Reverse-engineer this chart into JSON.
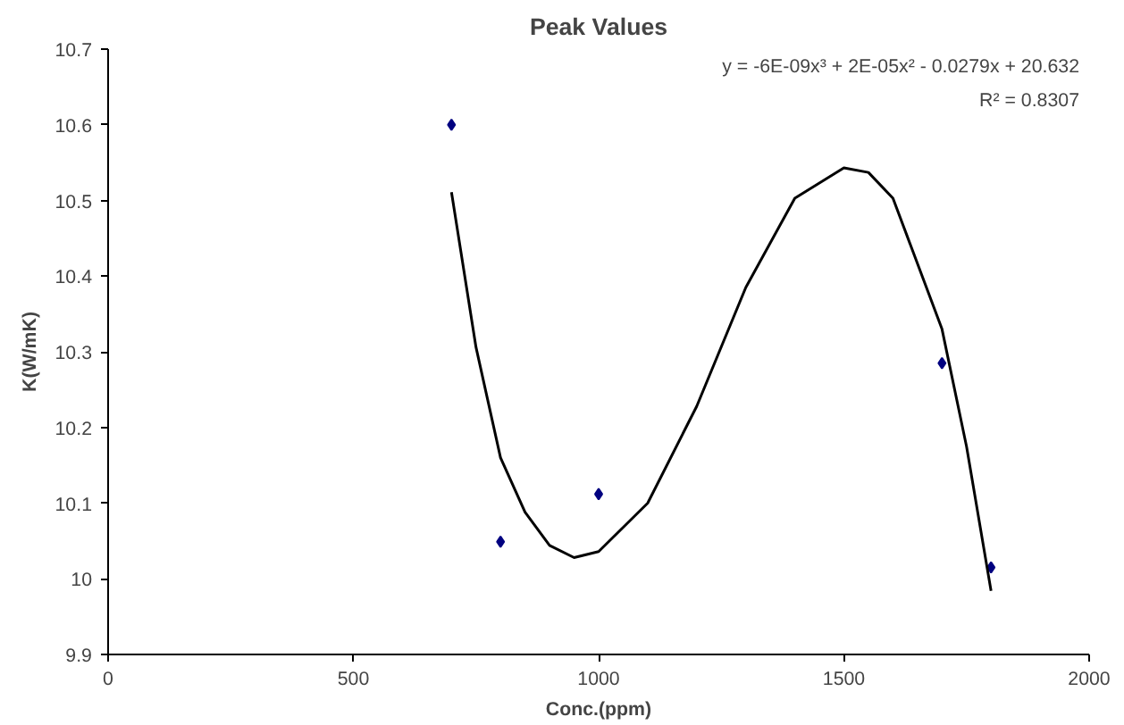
{
  "chart_data": {
    "type": "scatter",
    "title": "Peak Values",
    "xlabel": "Conc.(ppm)",
    "ylabel": "K(W/mK)",
    "xlim": [
      0,
      2000
    ],
    "xticks": [
      0,
      500,
      1000,
      1500,
      2000
    ],
    "ylim": [
      9.9,
      10.7
    ],
    "yticks": [
      {
        "value": 9.9,
        "label": "9.9"
      },
      {
        "value": 10,
        "label": "10"
      },
      {
        "value": 10.1,
        "label": "10.1"
      },
      {
        "value": 10.2,
        "label": "10.2"
      },
      {
        "value": 10.3,
        "label": "10.3"
      },
      {
        "value": 10.4,
        "label": "10.4"
      },
      {
        "value": 10.5,
        "label": "10.5"
      },
      {
        "value": 10.6,
        "label": "10.6"
      },
      {
        "value": 10.7,
        "label": "10.7"
      }
    ],
    "grid": false,
    "marker": "diamond",
    "series": [
      {
        "color": "#000080",
        "x": [
          700,
          800,
          1000,
          1700,
          1800
        ],
        "values": [
          10.6,
          10.049,
          10.112,
          10.285,
          10.015
        ]
      },
      {
        "type": "line",
        "marker": "none",
        "color": "#000000",
        "line_style": "solid",
        "x": [
          700,
          750,
          800,
          850,
          900,
          950,
          1000,
          1100,
          1200,
          1300,
          1400,
          1500,
          1550,
          1600,
          1700,
          1750,
          1800
        ],
        "values": [
          10.511,
          10.306,
          10.16,
          10.088,
          10.044,
          10.028,
          10.036,
          10.1,
          10.228,
          10.385,
          10.503,
          10.543,
          10.537,
          10.503,
          10.33,
          10.175,
          9.984
        ]
      }
    ],
    "annotations": [
      "y = -6E-09x³ + 2E-05x² - 0.0279x + 20.632",
      "R² = 0.8307"
    ]
  }
}
